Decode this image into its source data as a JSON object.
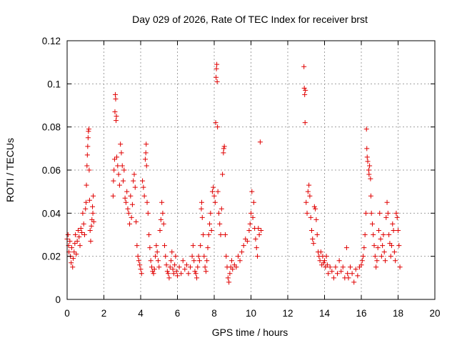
{
  "chart_data": {
    "type": "scatter",
    "title": "Day 029 of 2026, Rate Of TEC Index for receiver brst",
    "xlabel": "GPS time / hours",
    "ylabel": "ROTI / TECUs",
    "xlim": [
      0,
      20
    ],
    "ylim": [
      0,
      0.12
    ],
    "x_ticks": [
      "0",
      "2",
      "4",
      "6",
      "8",
      "10",
      "12",
      "14",
      "16",
      "18",
      "20"
    ],
    "y_ticks": [
      "0",
      "0.02",
      "0.04",
      "0.06",
      "0.08",
      "0.1",
      "0.12"
    ],
    "grid": true,
    "marker": "+",
    "marker_color": "#e00000",
    "legend": "none",
    "series": [
      {
        "values": [
          [
            0.0,
            0.028
          ],
          [
            0.05,
            0.03
          ],
          [
            0.08,
            0.025
          ],
          [
            0.1,
            0.022
          ],
          [
            0.15,
            0.027
          ],
          [
            0.18,
            0.02
          ],
          [
            0.22,
            0.017
          ],
          [
            0.25,
            0.024
          ],
          [
            0.3,
            0.015
          ],
          [
            0.33,
            0.019
          ],
          [
            0.38,
            0.022
          ],
          [
            0.42,
            0.026
          ],
          [
            0.45,
            0.03
          ],
          [
            0.5,
            0.021
          ],
          [
            0.55,
            0.027
          ],
          [
            0.6,
            0.032
          ],
          [
            0.65,
            0.029
          ],
          [
            0.7,
            0.025
          ],
          [
            0.75,
            0.033
          ],
          [
            0.8,
            0.031
          ],
          [
            0.85,
            0.04
          ],
          [
            0.9,
            0.035
          ],
          [
            0.95,
            0.03
          ],
          [
            1.0,
            0.042
          ],
          [
            1.03,
            0.045
          ],
          [
            1.05,
            0.053
          ],
          [
            1.08,
            0.062
          ],
          [
            1.1,
            0.067
          ],
          [
            1.12,
            0.071
          ],
          [
            1.14,
            0.075
          ],
          [
            1.16,
            0.078
          ],
          [
            1.18,
            0.079
          ],
          [
            1.2,
            0.06
          ],
          [
            1.22,
            0.046
          ],
          [
            1.25,
            0.032
          ],
          [
            1.28,
            0.027
          ],
          [
            1.32,
            0.034
          ],
          [
            1.35,
            0.037
          ],
          [
            1.38,
            0.043
          ],
          [
            1.4,
            0.04
          ],
          [
            1.42,
            0.048
          ],
          [
            1.45,
            0.036
          ],
          [
            2.5,
            0.048
          ],
          [
            2.52,
            0.055
          ],
          [
            2.55,
            0.06
          ],
          [
            2.58,
            0.065
          ],
          [
            2.6,
            0.087
          ],
          [
            2.62,
            0.095
          ],
          [
            2.64,
            0.093
          ],
          [
            2.66,
            0.083
          ],
          [
            2.68,
            0.085
          ],
          [
            2.7,
            0.066
          ],
          [
            2.75,
            0.062
          ],
          [
            2.8,
            0.058
          ],
          [
            2.85,
            0.053
          ],
          [
            2.9,
            0.072
          ],
          [
            2.95,
            0.068
          ],
          [
            3.0,
            0.062
          ],
          [
            3.05,
            0.055
          ],
          [
            3.1,
            0.06
          ],
          [
            3.15,
            0.047
          ],
          [
            3.2,
            0.045
          ],
          [
            3.25,
            0.05
          ],
          [
            3.3,
            0.042
          ],
          [
            3.35,
            0.04
          ],
          [
            3.4,
            0.035
          ],
          [
            3.45,
            0.048
          ],
          [
            3.5,
            0.038
          ],
          [
            3.55,
            0.044
          ],
          [
            3.6,
            0.055
          ],
          [
            3.65,
            0.058
          ],
          [
            3.7,
            0.052
          ],
          [
            3.75,
            0.036
          ],
          [
            3.8,
            0.025
          ],
          [
            3.85,
            0.02
          ],
          [
            3.9,
            0.018
          ],
          [
            3.95,
            0.016
          ],
          [
            4.0,
            0.014
          ],
          [
            4.05,
            0.012
          ],
          [
            4.1,
            0.055
          ],
          [
            4.15,
            0.052
          ],
          [
            4.2,
            0.048
          ],
          [
            4.25,
            0.065
          ],
          [
            4.28,
            0.068
          ],
          [
            4.3,
            0.072
          ],
          [
            4.32,
            0.062
          ],
          [
            4.35,
            0.045
          ],
          [
            4.4,
            0.04
          ],
          [
            4.45,
            0.03
          ],
          [
            4.5,
            0.024
          ],
          [
            4.55,
            0.018
          ],
          [
            4.6,
            0.015
          ],
          [
            4.65,
            0.013
          ],
          [
            4.7,
            0.012
          ],
          [
            4.75,
            0.014
          ],
          [
            4.8,
            0.02
          ],
          [
            4.85,
            0.025
          ],
          [
            4.9,
            0.022
          ],
          [
            4.95,
            0.018
          ],
          [
            5.0,
            0.015
          ],
          [
            5.05,
            0.032
          ],
          [
            5.1,
            0.037
          ],
          [
            5.15,
            0.045
          ],
          [
            5.2,
            0.04
          ],
          [
            5.25,
            0.035
          ],
          [
            5.3,
            0.025
          ],
          [
            5.35,
            0.02
          ],
          [
            5.4,
            0.016
          ],
          [
            5.45,
            0.013
          ],
          [
            5.5,
            0.012
          ],
          [
            5.55,
            0.01
          ],
          [
            5.6,
            0.015
          ],
          [
            5.65,
            0.018
          ],
          [
            5.7,
            0.022
          ],
          [
            5.75,
            0.014
          ],
          [
            5.8,
            0.012
          ],
          [
            5.85,
            0.016
          ],
          [
            5.9,
            0.02
          ],
          [
            5.95,
            0.013
          ],
          [
            6.0,
            0.011
          ],
          [
            6.1,
            0.015
          ],
          [
            6.2,
            0.012
          ],
          [
            6.3,
            0.018
          ],
          [
            6.4,
            0.014
          ],
          [
            6.5,
            0.016
          ],
          [
            6.6,
            0.012
          ],
          [
            6.7,
            0.015
          ],
          [
            6.8,
            0.02
          ],
          [
            6.85,
            0.025
          ],
          [
            6.9,
            0.018
          ],
          [
            6.95,
            0.013
          ],
          [
            7.0,
            0.012
          ],
          [
            7.05,
            0.01
          ],
          [
            7.1,
            0.015
          ],
          [
            7.15,
            0.02
          ],
          [
            7.2,
            0.018
          ],
          [
            7.25,
            0.025
          ],
          [
            7.3,
            0.042
          ],
          [
            7.32,
            0.045
          ],
          [
            7.35,
            0.038
          ],
          [
            7.4,
            0.03
          ],
          [
            7.45,
            0.02
          ],
          [
            7.5,
            0.015
          ],
          [
            7.55,
            0.013
          ],
          [
            7.6,
            0.018
          ],
          [
            7.65,
            0.024
          ],
          [
            7.7,
            0.03
          ],
          [
            7.75,
            0.035
          ],
          [
            7.8,
            0.04
          ],
          [
            7.85,
            0.032
          ],
          [
            7.9,
            0.05
          ],
          [
            7.95,
            0.052
          ],
          [
            8.0,
            0.048
          ],
          [
            8.05,
            0.045
          ],
          [
            8.08,
            0.082
          ],
          [
            8.1,
            0.103
          ],
          [
            8.12,
            0.107
          ],
          [
            8.14,
            0.109
          ],
          [
            8.16,
            0.101
          ],
          [
            8.18,
            0.08
          ],
          [
            8.2,
            0.05
          ],
          [
            8.25,
            0.04
          ],
          [
            8.3,
            0.035
          ],
          [
            8.35,
            0.03
          ],
          [
            8.4,
            0.042
          ],
          [
            8.45,
            0.058
          ],
          [
            8.5,
            0.068
          ],
          [
            8.52,
            0.07
          ],
          [
            8.55,
            0.071
          ],
          [
            8.6,
            0.03
          ],
          [
            8.65,
            0.02
          ],
          [
            8.7,
            0.015
          ],
          [
            8.75,
            0.01
          ],
          [
            8.8,
            0.008
          ],
          [
            8.85,
            0.012
          ],
          [
            8.9,
            0.015
          ],
          [
            8.95,
            0.018
          ],
          [
            9.0,
            0.014
          ],
          [
            9.1,
            0.016
          ],
          [
            9.2,
            0.015
          ],
          [
            9.3,
            0.02
          ],
          [
            9.4,
            0.018
          ],
          [
            9.5,
            0.022
          ],
          [
            9.6,
            0.025
          ],
          [
            9.7,
            0.028
          ],
          [
            9.8,
            0.027
          ],
          [
            9.9,
            0.032
          ],
          [
            9.95,
            0.035
          ],
          [
            10.0,
            0.04
          ],
          [
            10.05,
            0.05
          ],
          [
            10.1,
            0.038
          ],
          [
            10.15,
            0.045
          ],
          [
            10.2,
            0.033
          ],
          [
            10.25,
            0.028
          ],
          [
            10.3,
            0.024
          ],
          [
            10.35,
            0.02
          ],
          [
            10.4,
            0.033
          ],
          [
            10.45,
            0.03
          ],
          [
            10.5,
            0.073
          ],
          [
            10.55,
            0.032
          ],
          [
            12.88,
            0.108
          ],
          [
            12.9,
            0.098
          ],
          [
            12.92,
            0.095
          ],
          [
            12.94,
            0.082
          ],
          [
            12.96,
            0.097
          ],
          [
            13.0,
            0.045
          ],
          [
            13.05,
            0.04
          ],
          [
            13.1,
            0.05
          ],
          [
            13.15,
            0.053
          ],
          [
            13.2,
            0.048
          ],
          [
            13.25,
            0.038
          ],
          [
            13.3,
            0.032
          ],
          [
            13.35,
            0.028
          ],
          [
            13.4,
            0.026
          ],
          [
            13.45,
            0.043
          ],
          [
            13.5,
            0.042
          ],
          [
            13.55,
            0.037
          ],
          [
            13.6,
            0.03
          ],
          [
            13.65,
            0.022
          ],
          [
            13.7,
            0.02
          ],
          [
            13.75,
            0.018
          ],
          [
            13.8,
            0.022
          ],
          [
            13.85,
            0.016
          ],
          [
            13.9,
            0.02
          ],
          [
            13.95,
            0.017
          ],
          [
            14.0,
            0.018
          ],
          [
            14.05,
            0.015
          ],
          [
            14.1,
            0.02
          ],
          [
            14.15,
            0.016
          ],
          [
            14.2,
            0.012
          ],
          [
            14.3,
            0.015
          ],
          [
            14.4,
            0.013
          ],
          [
            14.5,
            0.01
          ],
          [
            14.6,
            0.015
          ],
          [
            14.7,
            0.012
          ],
          [
            14.8,
            0.018
          ],
          [
            14.9,
            0.013
          ],
          [
            15.0,
            0.015
          ],
          [
            15.1,
            0.01
          ],
          [
            15.2,
            0.024
          ],
          [
            15.25,
            0.012
          ],
          [
            15.3,
            0.01
          ],
          [
            15.4,
            0.015
          ],
          [
            15.5,
            0.012
          ],
          [
            15.6,
            0.008
          ],
          [
            15.7,
            0.014
          ],
          [
            15.8,
            0.011
          ],
          [
            15.9,
            0.015
          ],
          [
            16.0,
            0.016
          ],
          [
            16.05,
            0.018
          ],
          [
            16.1,
            0.02
          ],
          [
            16.15,
            0.024
          ],
          [
            16.2,
            0.03
          ],
          [
            16.25,
            0.04
          ],
          [
            16.28,
            0.079
          ],
          [
            16.3,
            0.07
          ],
          [
            16.32,
            0.066
          ],
          [
            16.35,
            0.064
          ],
          [
            16.4,
            0.06
          ],
          [
            16.42,
            0.058
          ],
          [
            16.45,
            0.062
          ],
          [
            16.5,
            0.056
          ],
          [
            16.52,
            0.048
          ],
          [
            16.55,
            0.04
          ],
          [
            16.6,
            0.035
          ],
          [
            16.65,
            0.03
          ],
          [
            16.7,
            0.025
          ],
          [
            16.75,
            0.02
          ],
          [
            16.8,
            0.015
          ],
          [
            16.85,
            0.018
          ],
          [
            16.9,
            0.024
          ],
          [
            16.95,
            0.032
          ],
          [
            17.0,
            0.04
          ],
          [
            17.05,
            0.028
          ],
          [
            17.1,
            0.02
          ],
          [
            17.15,
            0.025
          ],
          [
            17.2,
            0.03
          ],
          [
            17.25,
            0.022
          ],
          [
            17.3,
            0.018
          ],
          [
            17.35,
            0.038
          ],
          [
            17.4,
            0.045
          ],
          [
            17.45,
            0.04
          ],
          [
            17.5,
            0.03
          ],
          [
            17.55,
            0.026
          ],
          [
            17.6,
            0.02
          ],
          [
            17.65,
            0.025
          ],
          [
            17.7,
            0.035
          ],
          [
            17.75,
            0.032
          ],
          [
            17.8,
            0.022
          ],
          [
            17.85,
            0.018
          ],
          [
            17.9,
            0.04
          ],
          [
            17.95,
            0.038
          ],
          [
            18.0,
            0.032
          ],
          [
            18.05,
            0.025
          ],
          [
            18.1,
            0.015
          ]
        ]
      }
    ]
  }
}
